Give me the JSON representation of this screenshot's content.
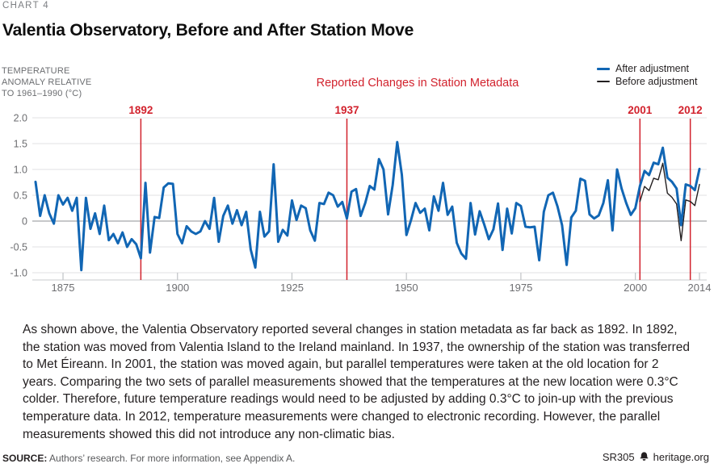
{
  "header": {
    "kicker": "CHART 4",
    "title": "Valentia Observatory, Before and After Station Move"
  },
  "chart_data": {
    "type": "line",
    "title": "Valentia Observatory, Before and After Station Move",
    "subtitle": "Reported Changes in Station Metadata",
    "y_axis_label_lines": [
      "TEMPERATURE",
      "ANOMALY RELATIVE",
      "TO 1961–1990 (°C)"
    ],
    "ylim": [
      -1.0,
      2.0
    ],
    "x_range": [
      1869,
      2014
    ],
    "grid": true,
    "legend_position": "top-right",
    "accent_red": "#d2222d",
    "yticks": [
      {
        "label": "2.0",
        "value": 2.0
      },
      {
        "label": "1.5",
        "value": 1.5
      },
      {
        "label": "1.0",
        "value": 1.0
      },
      {
        "label": "0.5",
        "value": 0.5
      },
      {
        "label": "0",
        "value": 0
      },
      {
        "label": "-0.5",
        "value": -0.5
      },
      {
        "label": "-1.0",
        "value": -1.0
      }
    ],
    "xticks": [
      1875,
      1900,
      1925,
      1950,
      1975,
      2000,
      2014
    ],
    "events": [
      {
        "year": 1892,
        "label": "1892"
      },
      {
        "year": 1937,
        "label": "1937"
      },
      {
        "year": 2001,
        "label": "2001"
      },
      {
        "year": 2012,
        "label": "2012"
      }
    ],
    "series": [
      {
        "name": "After adjustment",
        "color": "#1166b4",
        "width": 3,
        "x_start": 1869,
        "values": [
          0.76,
          0.1,
          0.5,
          0.15,
          -0.05,
          0.5,
          0.32,
          0.45,
          0.2,
          0.45,
          -0.95,
          0.45,
          -0.15,
          0.15,
          -0.25,
          0.3,
          -0.37,
          -0.25,
          -0.43,
          -0.22,
          -0.5,
          -0.35,
          -0.45,
          -0.72,
          0.74,
          -0.61,
          0.08,
          0.06,
          0.65,
          0.73,
          0.72,
          -0.25,
          -0.43,
          -0.1,
          -0.2,
          -0.25,
          -0.2,
          0.0,
          -0.15,
          0.45,
          -0.4,
          0.1,
          0.3,
          -0.05,
          0.21,
          -0.08,
          0.18,
          -0.55,
          -0.9,
          0.18,
          -0.3,
          -0.2,
          1.1,
          -0.4,
          -0.17,
          -0.28,
          0.4,
          0.02,
          0.3,
          0.25,
          -0.18,
          -0.38,
          0.35,
          0.33,
          0.55,
          0.5,
          0.28,
          0.37,
          0.05,
          0.57,
          0.62,
          0.1,
          0.35,
          0.68,
          0.61,
          1.2,
          1.0,
          0.13,
          0.7,
          1.53,
          0.9,
          -0.27,
          0.02,
          0.35,
          0.16,
          0.24,
          -0.18,
          0.48,
          0.2,
          0.74,
          0.12,
          0.28,
          -0.42,
          -0.63,
          -0.73,
          0.35,
          -0.26,
          0.19,
          -0.07,
          -0.35,
          -0.16,
          0.34,
          -0.56,
          0.24,
          -0.24,
          0.35,
          0.29,
          -0.11,
          -0.12,
          -0.11,
          -0.76,
          0.18,
          0.5,
          0.55,
          0.28,
          -0.08,
          -0.85,
          0.07,
          0.2,
          0.82,
          0.78,
          0.13,
          0.05,
          0.11,
          0.35,
          0.79,
          -0.18,
          1.0,
          0.63,
          0.35,
          0.12,
          0.25,
          0.68,
          0.97,
          0.89,
          1.13,
          1.1,
          1.42,
          0.84,
          0.76,
          0.63,
          -0.08,
          0.71,
          0.68,
          0.6,
          1.01
        ]
      },
      {
        "name": "Before adjustment",
        "color": "#231f20",
        "width": 1.4,
        "x_start": 2001,
        "values": [
          0.38,
          0.67,
          0.59,
          0.83,
          0.8,
          1.12,
          0.54,
          0.46,
          0.33,
          -0.38,
          0.41,
          0.38,
          0.3,
          0.71
        ]
      }
    ]
  },
  "body": {
    "paragraph": "As shown above, the Valentia Observatory reported several changes in station metadata as far back as 1892. In 1892, the station was moved from Valentia Island to the Ireland mainland. In 1937, the ownership of the station was transferred to Met Éireann. In 2001, the station was moved again, but parallel temperatures were taken at the old location for 2 years. Comparing the two sets of parallel measurements showed that the temperatures at the new location were 0.3°C colder. Therefore, future temperature readings would need to be adjusted by adding 0.3°C to join-up with the previous temperature data. In 2012, temperature measurements were changed to electronic recording. However, the parallel measurements showed this did not introduce any non-climatic bias."
  },
  "footer": {
    "source_label": "SOURCE:",
    "source_text": " Authors’ research. For more information, see Appendix A.",
    "report_id": "SR305",
    "site": "heritage.org"
  }
}
